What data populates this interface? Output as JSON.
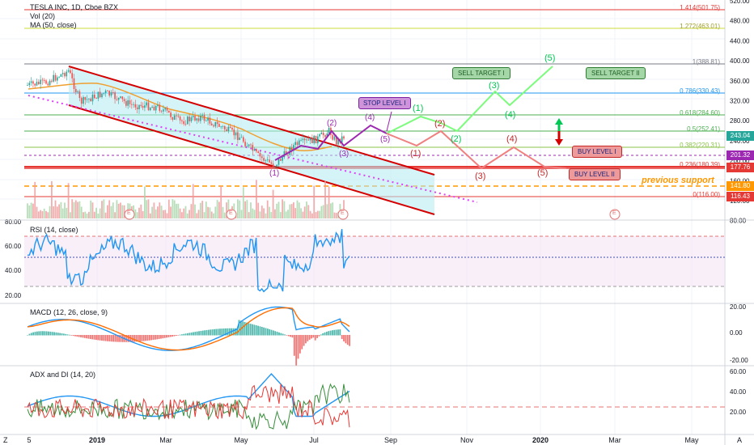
{
  "header": {
    "title": "TESLA INC, 1D, Cboe BZX",
    "vol": "Vol (20)",
    "ma": "MA (50, close)"
  },
  "main_axis_ticks": [
    "520.00",
    "480.00",
    "440.00",
    "400.00",
    "360.00",
    "320.00",
    "280.00",
    "240.00",
    "200.00",
    "160.00",
    "120.00",
    "80.00"
  ],
  "rsi_ticks": [
    "80.00",
    "60.00",
    "40.00",
    "20.00"
  ],
  "macd_ticks": [
    "20.00",
    "0.00",
    "-20.00"
  ],
  "adx_ticks": [
    "60.00",
    "40.00",
    "20.00"
  ],
  "time_axis": [
    "5",
    "2019",
    "Mar",
    "May",
    "Jul",
    "Sep",
    "Nov",
    "2020",
    "Mar",
    "May"
  ],
  "toolbar": {
    "log_label": "Z",
    "gear_label": "A"
  },
  "price_badges": [
    {
      "text": "243.04",
      "bg": "#26a69a"
    },
    {
      "text": "201.32",
      "bg": "#9c27b0"
    },
    {
      "text": "177.76",
      "bg": "#e53935"
    },
    {
      "text": "141.80",
      "bg": "#ff9800"
    },
    {
      "text": "116.43",
      "bg": "#e53935"
    }
  ],
  "fib_labels": [
    "1.414(501.75)",
    "1.272(463.01)",
    "1(388.81)",
    "0.786(330.43)",
    "0.618(284.60)",
    "0.5(252.41)",
    "0.382(220.31)",
    "0.236(180.39)",
    "0(116.00)"
  ],
  "annotations": {
    "stop_level": "STOP LEVEL I",
    "sell_target_1": "SELL TARGET I",
    "sell_target_2": "SELL TARGET II",
    "buy_level_1": "BUY LEVEL I",
    "buy_level_2": "BUY LEVEL II",
    "previous_support": "previous support"
  },
  "wave_labels": {
    "bull": [
      "(1)",
      "(2)",
      "(3)",
      "(4)",
      "(5)"
    ],
    "bear": [
      "(1)",
      "(2)",
      "(3)",
      "(4)",
      "(5)"
    ],
    "past": [
      "(1)",
      "(2)",
      "(3)",
      "(4)",
      "(5)"
    ]
  },
  "earnings_marker": "E",
  "panels": {
    "rsi": "RSI (14, close)",
    "macd": "MACD (12, 26, close, 9)",
    "adx": "ADX and DI (14, 20)"
  },
  "chart_data": {
    "type": "line",
    "title": "TESLA INC, 1D, Cboe BZX",
    "fib_levels": [
      {
        "ratio": "1.414",
        "price": 501.75
      },
      {
        "ratio": "1.272",
        "price": 463.01
      },
      {
        "ratio": "1",
        "price": 388.81
      },
      {
        "ratio": "0.786",
        "price": 330.43
      },
      {
        "ratio": "0.618",
        "price": 284.6
      },
      {
        "ratio": "0.5",
        "price": 252.41
      },
      {
        "ratio": "0.382",
        "price": 220.31
      },
      {
        "ratio": "0.236",
        "price": 180.39
      },
      {
        "ratio": "0",
        "price": 116.0
      }
    ],
    "last_price": 243.04,
    "horizontal_levels": [
      201.32,
      177.76,
      141.8,
      116.43
    ],
    "price_path": [
      [
        "2018-11-05",
        345
      ],
      [
        "2018-11-20",
        350
      ],
      [
        "2018-12-10",
        375
      ],
      [
        "2018-12-20",
        310
      ],
      [
        "2019-01-10",
        330
      ],
      [
        "2019-02-01",
        305
      ],
      [
        "2019-02-25",
        300
      ],
      [
        "2019-03-15",
        270
      ],
      [
        "2019-04-01",
        280
      ],
      [
        "2019-04-20",
        258
      ],
      [
        "2019-05-05",
        238
      ],
      [
        "2019-05-20",
        200
      ],
      [
        "2019-06-03",
        180
      ],
      [
        "2019-06-20",
        222
      ],
      [
        "2019-07-10",
        235
      ],
      [
        "2019-07-20",
        252
      ],
      [
        "2019-07-26",
        228
      ],
      [
        "2019-08-02",
        241
      ]
    ],
    "rsi_range": [
      20,
      80
    ],
    "macd_range": [
      -20,
      20
    ],
    "adx_range": [
      0,
      60
    ]
  }
}
